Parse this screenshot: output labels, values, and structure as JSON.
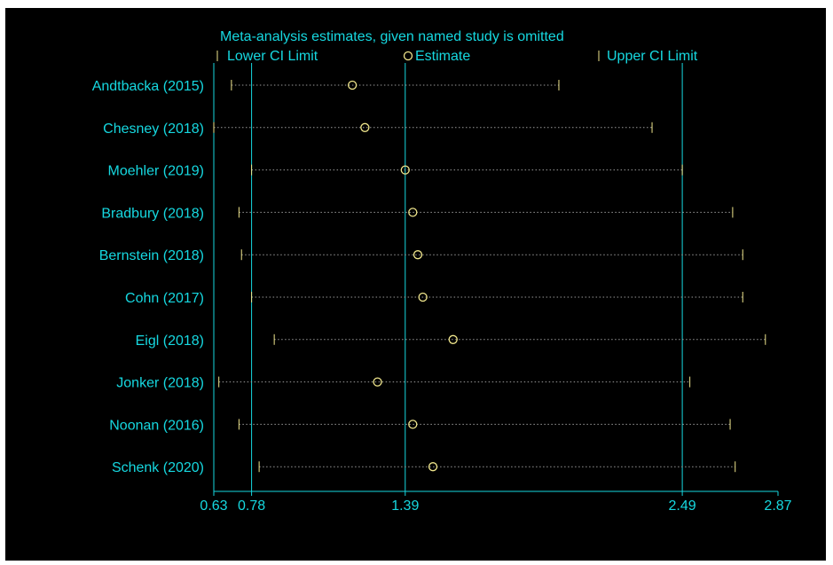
{
  "chart_data": {
    "type": "scatter",
    "title": "Meta-analysis estimates, given named study is omitted",
    "legend": {
      "lower_label": "Lower CI Limit",
      "estimate_label": "Estimate",
      "upper_label": "Upper CI Limit",
      "placement": "top"
    },
    "xlim": [
      0.63,
      2.87
    ],
    "xticks": [
      0.63,
      0.78,
      1.39,
      2.49,
      2.87
    ],
    "xtick_labels": [
      "0.63",
      "0.78",
      "1.39",
      "2.49",
      "2.87"
    ],
    "reference_lines": [
      0.78,
      1.39,
      2.49
    ],
    "studies": [
      {
        "label": "Andtbacka (2015)",
        "lower": 0.7,
        "estimate": 1.18,
        "upper": 2.0
      },
      {
        "label": "Chesney (2018)",
        "lower": 0.63,
        "estimate": 1.23,
        "upper": 2.37
      },
      {
        "label": "Moehler (2019)",
        "lower": 0.78,
        "estimate": 1.39,
        "upper": 2.49
      },
      {
        "label": "Bradbury (2018)",
        "lower": 0.73,
        "estimate": 1.42,
        "upper": 2.69
      },
      {
        "label": "Bernstein (2018)",
        "lower": 0.74,
        "estimate": 1.44,
        "upper": 2.73
      },
      {
        "label": "Cohn (2017)",
        "lower": 0.78,
        "estimate": 1.46,
        "upper": 2.73
      },
      {
        "label": "Eigl (2018)",
        "lower": 0.87,
        "estimate": 1.58,
        "upper": 2.82
      },
      {
        "label": "Jonker (2018)",
        "lower": 0.65,
        "estimate": 1.28,
        "upper": 2.52
      },
      {
        "label": "Noonan (2016)",
        "lower": 0.73,
        "estimate": 1.42,
        "upper": 2.68
      },
      {
        "label": "Schenk (2020)",
        "lower": 0.81,
        "estimate": 1.5,
        "upper": 2.7
      }
    ],
    "grid": false
  },
  "colors": {
    "background": "#000000",
    "text": "#16d8e0",
    "axis": "#16d8e0",
    "marker": "#f0e68c",
    "dotted": "#9a9a9a"
  }
}
